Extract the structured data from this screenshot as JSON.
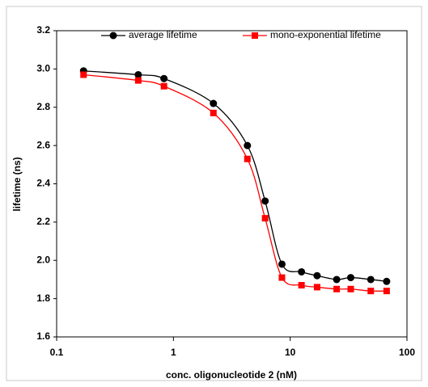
{
  "chart_data": {
    "type": "line",
    "x_label": "conc. oligonucleotide 2 (nM)",
    "y_label": "lifetime (ns)",
    "log_x": true,
    "xlim": [
      0.1,
      100
    ],
    "xticks": [
      0.1,
      1,
      10,
      100
    ],
    "ylim": [
      1.6,
      3.2
    ],
    "yticks": [
      1.6,
      1.8,
      {
        "value": 2,
        "label": "2.0"
      },
      2.2,
      2.4,
      2.6,
      2.8,
      {
        "value": 3,
        "label": "3.0"
      },
      3.2
    ],
    "x": [
      0.17,
      0.5,
      0.83,
      2.2,
      4.3,
      6.1,
      8.5,
      12.5,
      17,
      25,
      33,
      49,
      67
    ],
    "series": [
      {
        "name": "average lifetime",
        "color": "#000000",
        "marker": "circle",
        "values": [
          2.99,
          2.97,
          2.95,
          2.82,
          2.6,
          2.31,
          1.98,
          1.94,
          1.92,
          1.9,
          1.91,
          1.9,
          1.89
        ]
      },
      {
        "name": "mono-exponential lifetime",
        "color": "#ff0000",
        "marker": "square",
        "values": [
          2.97,
          2.94,
          2.91,
          2.77,
          2.53,
          2.22,
          1.91,
          1.87,
          1.86,
          1.85,
          1.85,
          1.84,
          1.84
        ]
      }
    ]
  }
}
